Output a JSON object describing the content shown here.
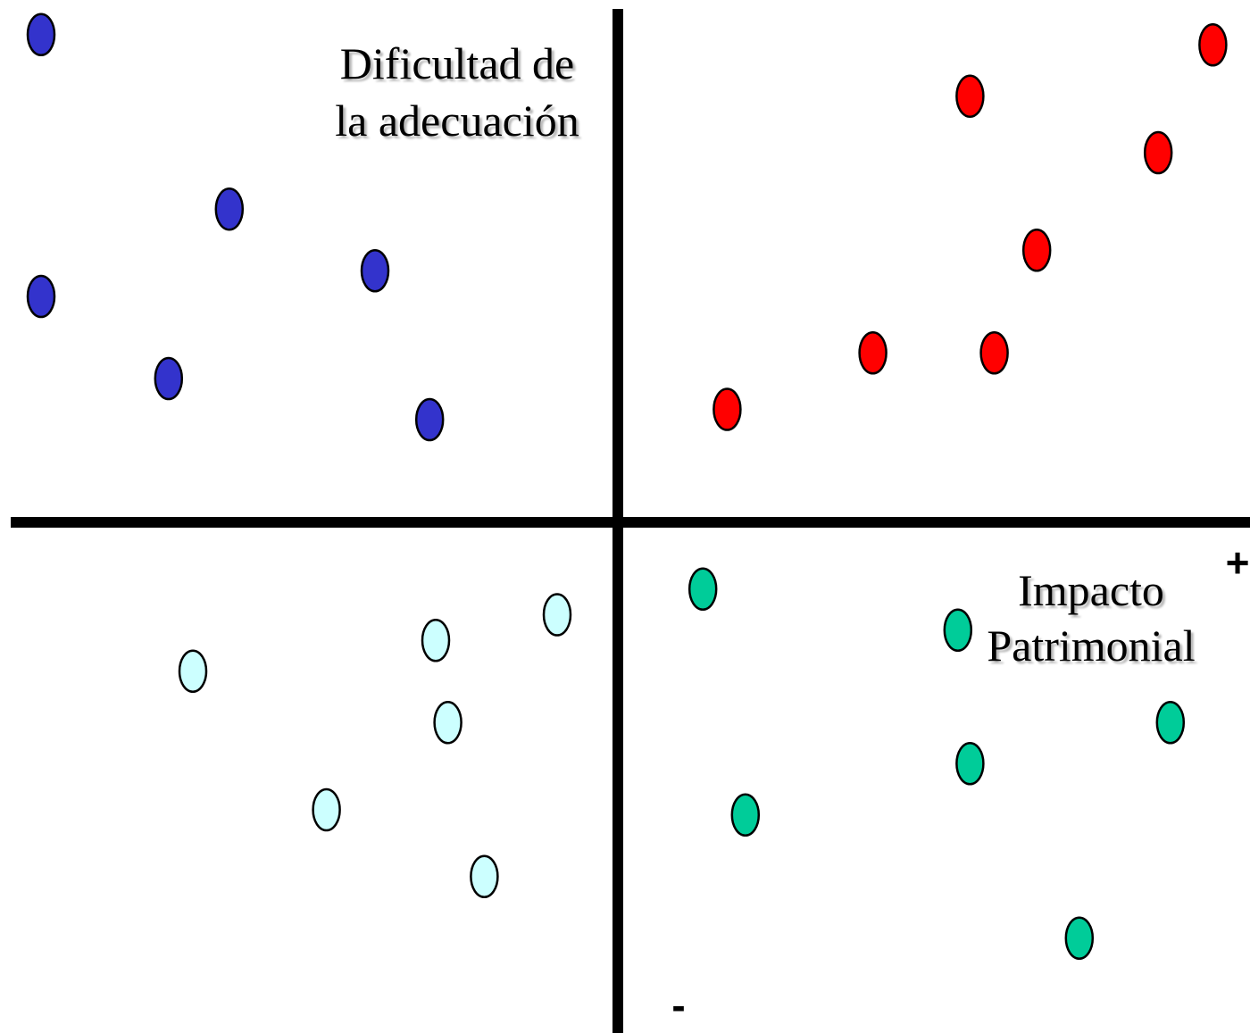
{
  "chart_data": {
    "type": "scatter",
    "title": "",
    "xlabel": "Impacto\nPatrimonial",
    "ylabel": "Dificultad de\nla adecuación",
    "positive_marker": "+",
    "negative_marker": "-",
    "xlim": [
      -10,
      10
    ],
    "ylim": [
      -10,
      10
    ],
    "grid": false,
    "legend": "none",
    "series": [
      {
        "color": "#3333cc",
        "points": [
          {
            "x": -9.5,
            "y": 9.5
          },
          {
            "x": -6.4,
            "y": 6.1
          },
          {
            "x": -9.5,
            "y": 4.4
          },
          {
            "x": -4.0,
            "y": 4.9
          },
          {
            "x": -7.4,
            "y": 2.8
          },
          {
            "x": -3.1,
            "y": 2.0
          }
        ]
      },
      {
        "color": "#ff0000",
        "points": [
          {
            "x": 9.8,
            "y": 9.3
          },
          {
            "x": 5.8,
            "y": 8.3
          },
          {
            "x": 8.9,
            "y": 7.2
          },
          {
            "x": 6.9,
            "y": 5.3
          },
          {
            "x": 4.2,
            "y": 3.3
          },
          {
            "x": 6.2,
            "y": 3.3
          },
          {
            "x": 1.8,
            "y": 2.2
          }
        ]
      },
      {
        "color": "#ccffff",
        "points": [
          {
            "x": -1.0,
            "y": -1.8
          },
          {
            "x": -3.0,
            "y": -2.3
          },
          {
            "x": -7.0,
            "y": -2.9
          },
          {
            "x": -2.8,
            "y": -3.9
          },
          {
            "x": -4.8,
            "y": -5.6
          },
          {
            "x": -2.2,
            "y": -6.9
          }
        ]
      },
      {
        "color": "#00cc99",
        "points": [
          {
            "x": 1.4,
            "y": -1.3
          },
          {
            "x": 5.6,
            "y": -2.1
          },
          {
            "x": 9.1,
            "y": -3.9
          },
          {
            "x": 5.8,
            "y": -4.7
          },
          {
            "x": 2.1,
            "y": -5.7
          },
          {
            "x": 7.6,
            "y": -8.1
          }
        ]
      }
    ]
  }
}
